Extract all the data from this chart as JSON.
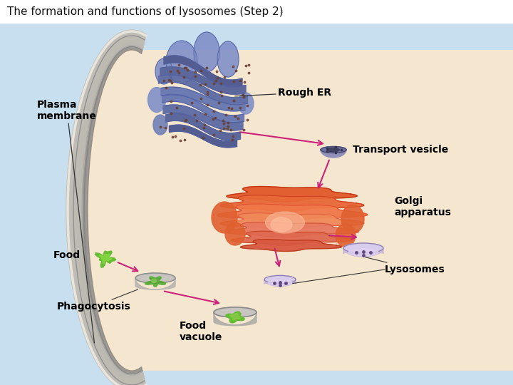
{
  "title": "The formation and functions of lysosomes (Step 2)",
  "title_fontsize": 11,
  "title_color": "#111111",
  "bg_outer_left": "#c8dff0",
  "bg_white_top": "#ffffff",
  "bg_cell": "#f5e6d0",
  "membrane_outer_color": "#d0cfc8",
  "membrane_inner_color": "#b8b5ac",
  "membrane_highlight": "#e8e6e0",
  "rough_er_color": "#7080b8",
  "rough_er_dark": "#5060a0",
  "rough_er_light": "#90a0d0",
  "ribosome_color": "#6b4030",
  "golgi_outer": "#e86030",
  "golgi_mid": "#f08050",
  "golgi_inner": "#f8a080",
  "golgi_core": "#e87068",
  "transport_vesicle_outer": "#8888aa",
  "transport_vesicle_inner": "#505070",
  "lysosome_outer": "#c8b8d8",
  "lysosome_rim": "#9080b0",
  "lysosome_inner": "#d8ccec",
  "lysosome_dot": "#604880",
  "food_color": "#55aa33",
  "cup_color": "#a0a0a0",
  "cup_highlight": "#d0d0d0",
  "food_vacuole_food": "#66bb44",
  "arrow_color": "#cc2277",
  "line_color": "#333333",
  "label_color": "#000000",
  "label_fontsize": 9,
  "label_bold_fontsize": 10,
  "plasma_label": "Plasma\nmembrane",
  "rough_er_label": "Rough ER",
  "transport_label": "Transport vesicle",
  "golgi_label": "Golgi\napparatus",
  "lysosomes_label": "Lysosomes",
  "food_label": "Food",
  "phago_label": "Phagocytosis",
  "vacuole_label": "Food\nvacuole"
}
